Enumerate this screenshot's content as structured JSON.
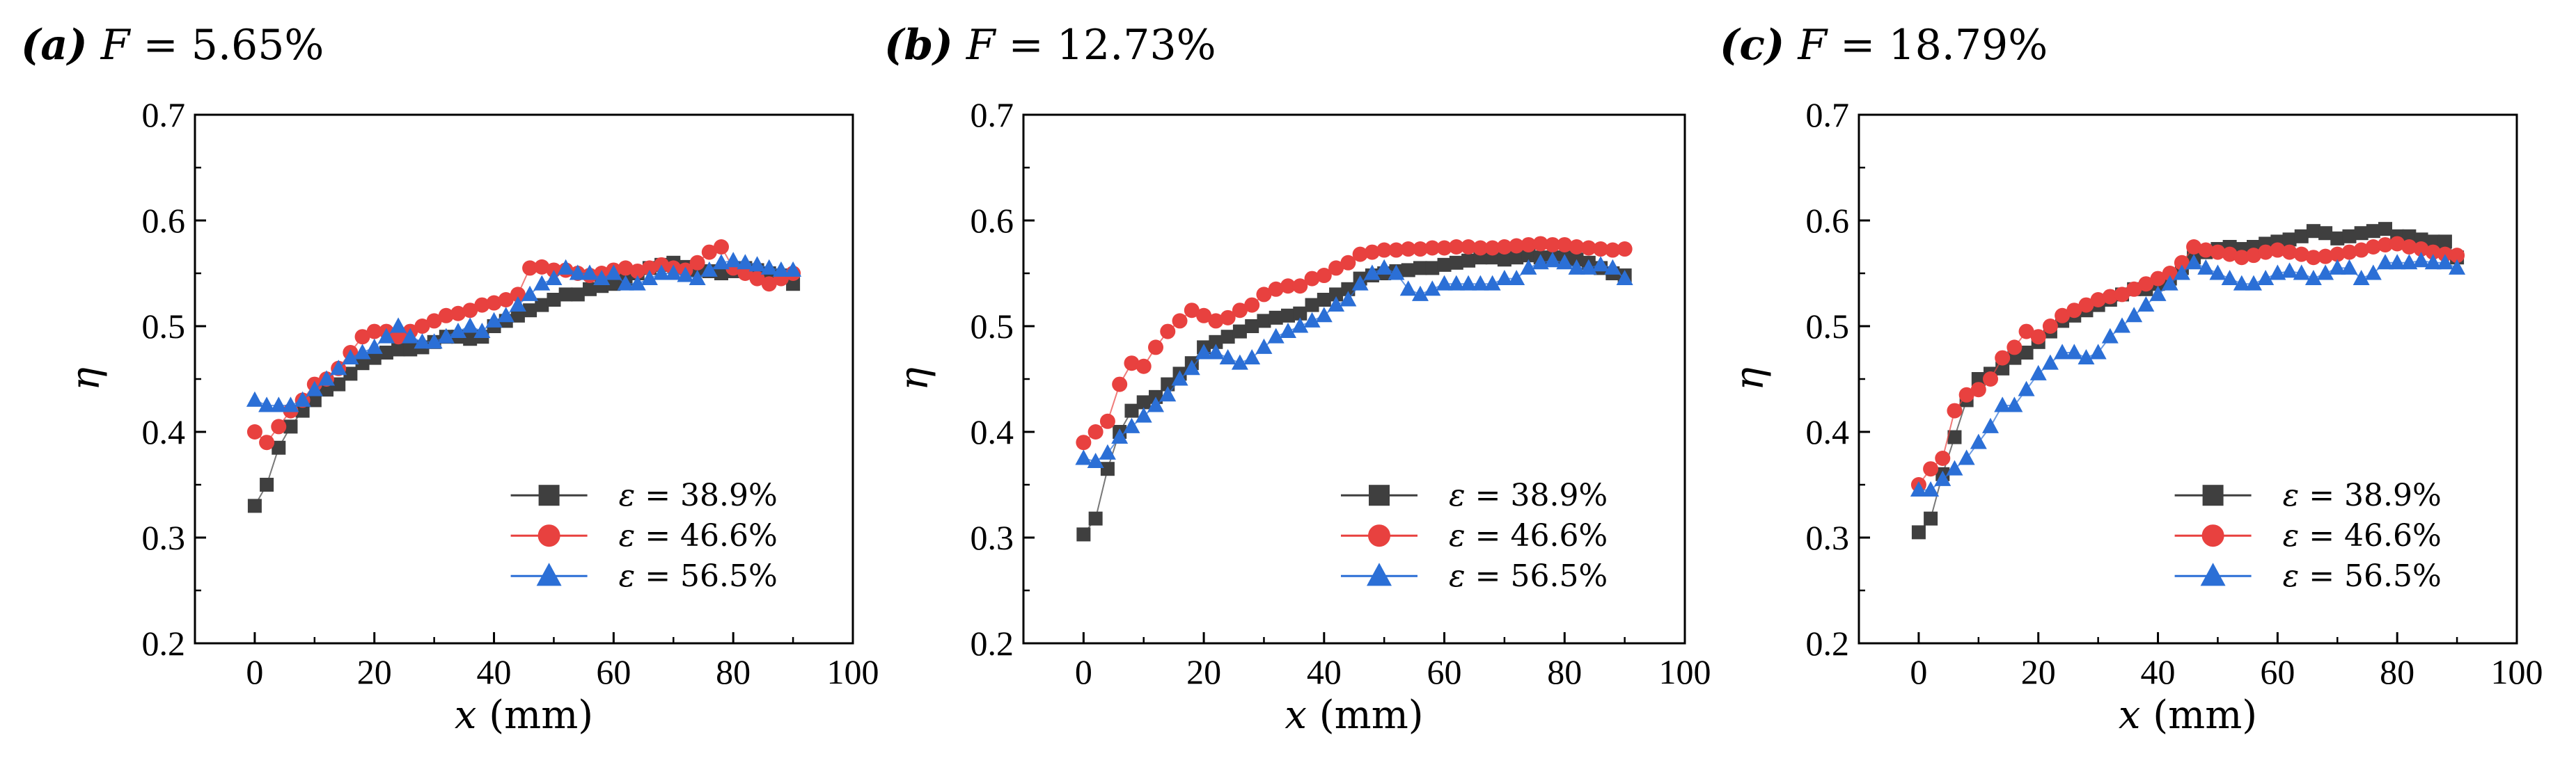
{
  "chart_data": [
    {
      "type": "scatter",
      "panel": "(a)",
      "title": "F = 5.65%",
      "title_parts": {
        "tag": "(a)",
        "symbol": "F",
        "value": "= 5.65%"
      },
      "xlabel": "x (mm)",
      "xlabel_parts": {
        "symbol": "x",
        "unit": "(mm)"
      },
      "ylabel": "η",
      "xlim": [
        -10,
        100
      ],
      "ylim": [
        0.2,
        0.7
      ],
      "xticks": [
        0,
        20,
        40,
        60,
        80,
        100
      ],
      "yticks": [
        0.2,
        0.3,
        0.4,
        0.5,
        0.6,
        0.7
      ],
      "legend_position": "bottom-right",
      "x": [
        0,
        2,
        4,
        6,
        8,
        10,
        12,
        14,
        16,
        18,
        20,
        22,
        24,
        26,
        28,
        30,
        32,
        34,
        36,
        38,
        40,
        42,
        44,
        46,
        48,
        50,
        52,
        54,
        56,
        58,
        60,
        62,
        64,
        66,
        68,
        70,
        72,
        74,
        76,
        78,
        80,
        82,
        84,
        86,
        88,
        90
      ],
      "series": [
        {
          "name": "ε = 38.9%",
          "symbol": "ε",
          "value_label": "= 38.9%",
          "marker": "square",
          "color": "#3f3f3f",
          "values": [
            0.33,
            0.35,
            0.385,
            0.405,
            0.42,
            0.43,
            0.44,
            0.445,
            0.455,
            0.465,
            0.47,
            0.475,
            0.478,
            0.478,
            0.48,
            0.485,
            0.49,
            0.49,
            0.488,
            0.49,
            0.5,
            0.505,
            0.51,
            0.515,
            0.52,
            0.525,
            0.53,
            0.53,
            0.535,
            0.538,
            0.54,
            0.545,
            0.55,
            0.555,
            0.558,
            0.56,
            0.556,
            0.553,
            0.552,
            0.55,
            0.552,
            0.555,
            0.553,
            0.55,
            0.548,
            0.54
          ]
        },
        {
          "name": "ε = 46.6%",
          "symbol": "ε",
          "value_label": "= 46.6%",
          "marker": "circle",
          "color": "#e8413f",
          "values": [
            0.4,
            0.39,
            0.405,
            0.42,
            0.43,
            0.445,
            0.45,
            0.46,
            0.475,
            0.49,
            0.495,
            0.495,
            0.49,
            0.495,
            0.5,
            0.505,
            0.51,
            0.512,
            0.515,
            0.52,
            0.522,
            0.525,
            0.53,
            0.555,
            0.556,
            0.553,
            0.553,
            0.55,
            0.548,
            0.55,
            0.553,
            0.555,
            0.552,
            0.555,
            0.558,
            0.555,
            0.553,
            0.56,
            0.57,
            0.575,
            0.555,
            0.55,
            0.545,
            0.54,
            0.545,
            0.55
          ]
        },
        {
          "name": "ε = 56.5%",
          "symbol": "ε",
          "value_label": "= 56.5%",
          "marker": "triangle",
          "color": "#2b6fd6",
          "values": [
            0.43,
            0.425,
            0.425,
            0.425,
            0.43,
            0.44,
            0.45,
            0.46,
            0.47,
            0.475,
            0.48,
            0.49,
            0.5,
            0.49,
            0.485,
            0.485,
            0.49,
            0.495,
            0.5,
            0.495,
            0.505,
            0.51,
            0.52,
            0.53,
            0.54,
            0.545,
            0.555,
            0.55,
            0.55,
            0.545,
            0.55,
            0.54,
            0.54,
            0.545,
            0.55,
            0.55,
            0.548,
            0.545,
            0.553,
            0.56,
            0.562,
            0.56,
            0.558,
            0.555,
            0.553,
            0.553
          ]
        }
      ]
    },
    {
      "type": "scatter",
      "panel": "(b)",
      "title": "F = 12.73%",
      "title_parts": {
        "tag": "(b)",
        "symbol": "F",
        "value": "= 12.73%"
      },
      "xlabel": "x (mm)",
      "xlabel_parts": {
        "symbol": "x",
        "unit": "(mm)"
      },
      "ylabel": "η",
      "xlim": [
        -10,
        100
      ],
      "ylim": [
        0.2,
        0.7
      ],
      "xticks": [
        0,
        20,
        40,
        60,
        80,
        100
      ],
      "yticks": [
        0.2,
        0.3,
        0.4,
        0.5,
        0.6,
        0.7
      ],
      "legend_position": "bottom-right",
      "x": [
        0,
        2,
        4,
        6,
        8,
        10,
        12,
        14,
        16,
        18,
        20,
        22,
        24,
        26,
        28,
        30,
        32,
        34,
        36,
        38,
        40,
        42,
        44,
        46,
        48,
        50,
        52,
        54,
        56,
        58,
        60,
        62,
        64,
        66,
        68,
        70,
        72,
        74,
        76,
        78,
        80,
        82,
        84,
        86,
        88,
        90
      ],
      "series": [
        {
          "name": "ε = 38.9%",
          "symbol": "ε",
          "value_label": "= 38.9%",
          "marker": "square",
          "color": "#3f3f3f",
          "values": [
            0.303,
            0.318,
            0.365,
            0.4,
            0.42,
            0.428,
            0.433,
            0.445,
            0.455,
            0.465,
            0.48,
            0.485,
            0.49,
            0.495,
            0.5,
            0.505,
            0.508,
            0.51,
            0.512,
            0.52,
            0.525,
            0.53,
            0.535,
            0.545,
            0.548,
            0.55,
            0.552,
            0.553,
            0.555,
            0.555,
            0.558,
            0.56,
            0.562,
            0.565,
            0.565,
            0.563,
            0.565,
            0.567,
            0.565,
            0.565,
            0.565,
            0.563,
            0.56,
            0.555,
            0.55,
            0.548
          ]
        },
        {
          "name": "ε = 46.6%",
          "symbol": "ε",
          "value_label": "= 46.6%",
          "marker": "circle",
          "color": "#e8413f",
          "values": [
            0.39,
            0.4,
            0.41,
            0.445,
            0.465,
            0.462,
            0.48,
            0.495,
            0.505,
            0.515,
            0.51,
            0.505,
            0.508,
            0.515,
            0.52,
            0.53,
            0.535,
            0.538,
            0.538,
            0.545,
            0.548,
            0.555,
            0.56,
            0.568,
            0.57,
            0.572,
            0.572,
            0.573,
            0.573,
            0.574,
            0.574,
            0.575,
            0.575,
            0.574,
            0.574,
            0.575,
            0.576,
            0.577,
            0.578,
            0.577,
            0.577,
            0.575,
            0.574,
            0.573,
            0.572,
            0.573
          ]
        },
        {
          "name": "ε = 56.5%",
          "symbol": "ε",
          "value_label": "= 56.5%",
          "marker": "triangle",
          "color": "#2b6fd6",
          "values": [
            0.375,
            0.372,
            0.38,
            0.395,
            0.405,
            0.415,
            0.425,
            0.435,
            0.45,
            0.46,
            0.475,
            0.475,
            0.47,
            0.465,
            0.47,
            0.48,
            0.49,
            0.495,
            0.5,
            0.505,
            0.51,
            0.52,
            0.525,
            0.54,
            0.55,
            0.555,
            0.55,
            0.535,
            0.53,
            0.535,
            0.54,
            0.54,
            0.54,
            0.54,
            0.54,
            0.545,
            0.545,
            0.555,
            0.56,
            0.562,
            0.56,
            0.555,
            0.555,
            0.558,
            0.555,
            0.545
          ]
        }
      ]
    },
    {
      "type": "scatter",
      "panel": "(c)",
      "title": "F = 18.79%",
      "title_parts": {
        "tag": "(c)",
        "symbol": "F",
        "value": "= 18.79%"
      },
      "xlabel": "x (mm)",
      "xlabel_parts": {
        "symbol": "x",
        "unit": "(mm)"
      },
      "ylabel": "η",
      "xlim": [
        -10,
        100
      ],
      "ylim": [
        0.2,
        0.7
      ],
      "xticks": [
        0,
        20,
        40,
        60,
        80,
        100
      ],
      "yticks": [
        0.2,
        0.3,
        0.4,
        0.5,
        0.6,
        0.7
      ],
      "legend_position": "bottom-right",
      "x": [
        0,
        2,
        4,
        6,
        8,
        10,
        12,
        14,
        16,
        18,
        20,
        22,
        24,
        26,
        28,
        30,
        32,
        34,
        36,
        38,
        40,
        42,
        44,
        46,
        48,
        50,
        52,
        54,
        56,
        58,
        60,
        62,
        64,
        66,
        68,
        70,
        72,
        74,
        76,
        78,
        80,
        82,
        84,
        86,
        88,
        90
      ],
      "series": [
        {
          "name": "ε = 38.9%",
          "symbol": "ε",
          "value_label": "= 38.9%",
          "marker": "square",
          "color": "#3f3f3f",
          "values": [
            0.305,
            0.318,
            0.36,
            0.395,
            0.43,
            0.45,
            0.455,
            0.46,
            0.47,
            0.475,
            0.485,
            0.495,
            0.505,
            0.51,
            0.515,
            0.52,
            0.525,
            0.53,
            0.535,
            0.535,
            0.54,
            0.545,
            0.555,
            0.565,
            0.57,
            0.573,
            0.575,
            0.573,
            0.575,
            0.578,
            0.58,
            0.582,
            0.585,
            0.59,
            0.588,
            0.583,
            0.585,
            0.588,
            0.59,
            0.592,
            0.585,
            0.585,
            0.582,
            0.58,
            0.58,
            0.565
          ]
        },
        {
          "name": "ε = 46.6%",
          "symbol": "ε",
          "value_label": "= 46.6%",
          "marker": "circle",
          "color": "#e8413f",
          "values": [
            0.35,
            0.365,
            0.375,
            0.42,
            0.435,
            0.44,
            0.45,
            0.47,
            0.48,
            0.495,
            0.49,
            0.5,
            0.51,
            0.515,
            0.52,
            0.525,
            0.528,
            0.53,
            0.535,
            0.54,
            0.545,
            0.55,
            0.56,
            0.575,
            0.572,
            0.57,
            0.568,
            0.565,
            0.567,
            0.57,
            0.572,
            0.57,
            0.568,
            0.565,
            0.566,
            0.568,
            0.57,
            0.572,
            0.575,
            0.577,
            0.578,
            0.575,
            0.573,
            0.57,
            0.568,
            0.567
          ]
        },
        {
          "name": "ε = 56.5%",
          "symbol": "ε",
          "value_label": "= 56.5%",
          "marker": "triangle",
          "color": "#2b6fd6",
          "values": [
            0.345,
            0.345,
            0.355,
            0.365,
            0.375,
            0.39,
            0.405,
            0.425,
            0.425,
            0.44,
            0.455,
            0.465,
            0.475,
            0.475,
            0.47,
            0.475,
            0.49,
            0.5,
            0.51,
            0.52,
            0.53,
            0.54,
            0.55,
            0.56,
            0.555,
            0.55,
            0.545,
            0.54,
            0.54,
            0.545,
            0.55,
            0.552,
            0.55,
            0.545,
            0.55,
            0.555,
            0.555,
            0.545,
            0.55,
            0.56,
            0.56,
            0.56,
            0.562,
            0.56,
            0.56,
            0.555
          ]
        }
      ]
    }
  ]
}
